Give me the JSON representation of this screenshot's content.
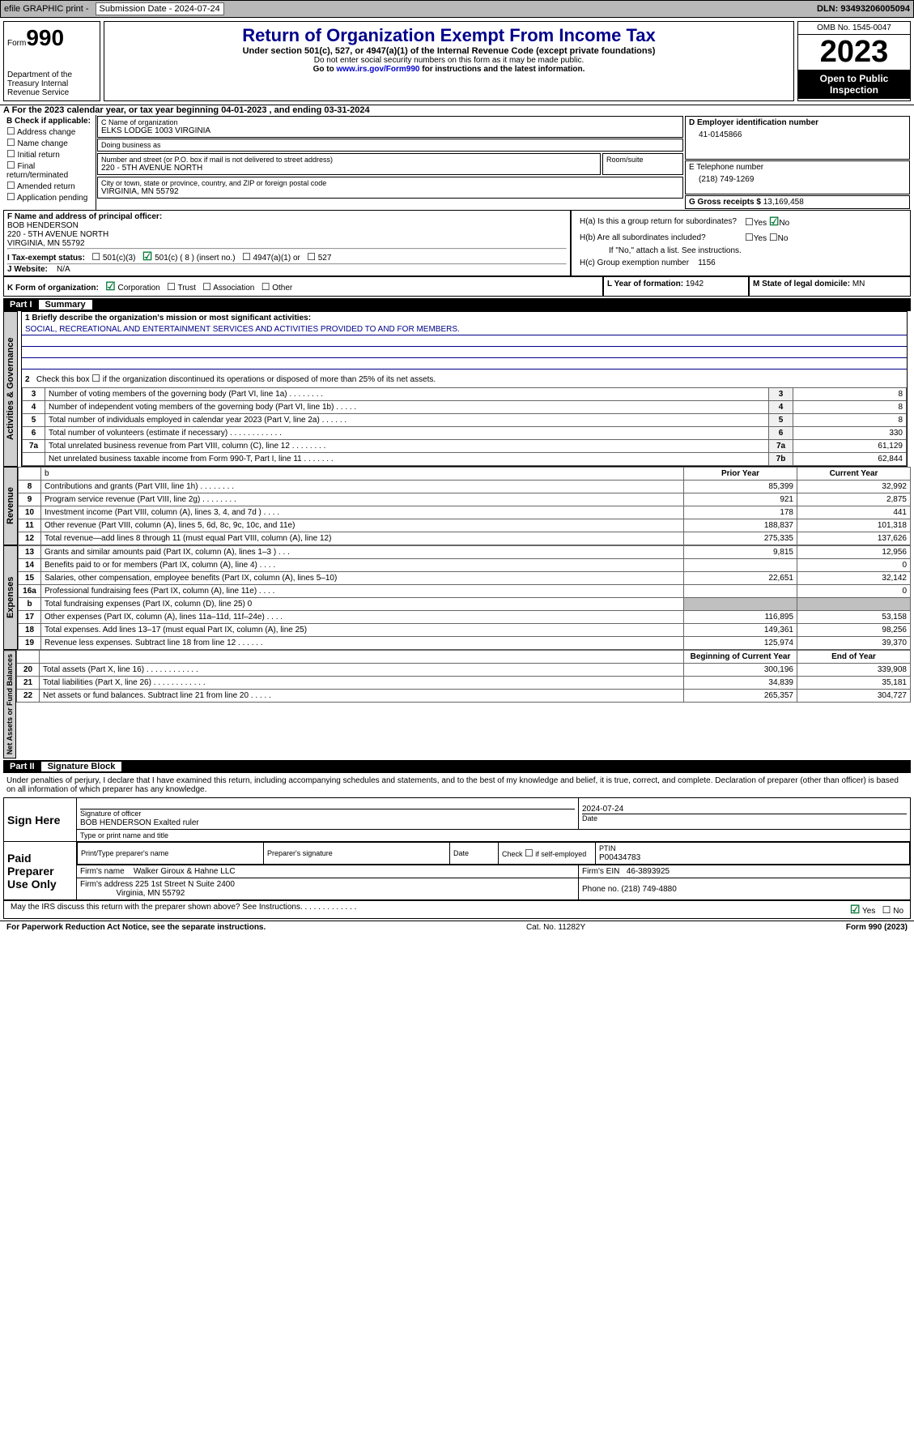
{
  "topbar": {
    "efile": "efile GRAPHIC print -",
    "submission": "Submission Date - 2024-07-24",
    "dln": "DLN: 93493206005094"
  },
  "header": {
    "form_prefix": "Form",
    "form_number": "990",
    "dept": "Department of the Treasury Internal Revenue Service",
    "title": "Return of Organization Exempt From Income Tax",
    "subtitle": "Under section 501(c), 527, or 4947(a)(1) of the Internal Revenue Code (except private foundations)",
    "note1": "Do not enter social security numbers on this form as it may be made public.",
    "note2_pre": "Go to ",
    "note2_link": "www.irs.gov/Form990",
    "note2_post": " for instructions and the latest information.",
    "omb": "OMB No. 1545-0047",
    "year": "2023",
    "inspect": "Open to Public Inspection"
  },
  "section_a": "A For the 2023 calendar year, or tax year beginning 04-01-2023    , and ending 03-31-2024",
  "section_b": {
    "title": "B Check if applicable:",
    "items": [
      "Address change",
      "Name change",
      "Initial return",
      "Final return/terminated",
      "Amended return",
      "Application pending"
    ]
  },
  "section_c": {
    "name_lbl": "C Name of organization",
    "name": "ELKS LODGE 1003 VIRGINIA",
    "dba_lbl": "Doing business as",
    "dba": "",
    "addr_lbl": "Number and street (or P.O. box if mail is not delivered to street address)",
    "addr": "220 - 5TH AVENUE NORTH",
    "room_lbl": "Room/suite",
    "city_lbl": "City or town, state or province, country, and ZIP or foreign postal code",
    "city": "VIRGINIA, MN  55792"
  },
  "section_d": {
    "lbl": "D Employer identification number",
    "val": "41-0145866"
  },
  "section_e": {
    "lbl": "E Telephone number",
    "val": "(218) 749-1269"
  },
  "section_g": {
    "lbl": "G Gross receipts $",
    "val": "13,169,458"
  },
  "section_f": {
    "lbl": "F  Name and address of principal officer:",
    "name": "BOB HENDERSON",
    "addr1": "220 - 5TH AVENUE NORTH",
    "addr2": "VIRGINIA, MN  55792"
  },
  "section_h": {
    "ha": "H(a)  Is this a group return for subordinates?",
    "hb": "H(b)  Are all subordinates included?",
    "hb_note": "If \"No,\" attach a list. See instructions.",
    "hc": "H(c)  Group exemption number",
    "hc_val": "1156"
  },
  "section_i": {
    "lbl": "I    Tax-exempt status:",
    "c3": "501(c)(3)",
    "c": "501(c) ( 8 ) (insert no.)",
    "a4947": "4947(a)(1) or",
    "s527": "527"
  },
  "section_j": {
    "lbl": "J    Website:",
    "val": "N/A"
  },
  "section_k": {
    "lbl": "K Form of organization:",
    "corp": "Corporation",
    "trust": "Trust",
    "assoc": "Association",
    "other": "Other"
  },
  "section_l": {
    "lbl": "L Year of formation:",
    "val": "1942"
  },
  "section_m": {
    "lbl": "M State of legal domicile:",
    "val": "MN"
  },
  "part1": {
    "num": "Part I",
    "title": "Summary",
    "mission_lbl": "1   Briefly describe the organization's mission or most significant activities:",
    "mission": "SOCIAL, RECREATIONAL AND ENTERTAINMENT SERVICES AND ACTIVITIES PROVIDED TO AND FOR MEMBERS.",
    "line2": "Check this box       if the organization discontinued its operations or disposed of more than 25% of its net assets.",
    "tabs": {
      "ag": "Activities & Governance",
      "rev": "Revenue",
      "exp": "Expenses",
      "net": "Net Assets or Fund Balances"
    },
    "rows_single": [
      {
        "n": "3",
        "t": "Number of voting members of the governing body (Part VI, line 1a)   .    .    .    .    .    .    .    .",
        "c": "3",
        "v": "8"
      },
      {
        "n": "4",
        "t": "Number of independent voting members of the governing body (Part VI, line 1b)   .    .    .    .    .",
        "c": "4",
        "v": "8"
      },
      {
        "n": "5",
        "t": "Total number of individuals employed in calendar year 2023 (Part V, line 2a)   .    .    .    .    .    .",
        "c": "5",
        "v": "8"
      },
      {
        "n": "6",
        "t": "Total number of volunteers (estimate if necessary)   .    .    .    .    .    .    .    .    .    .    .    .",
        "c": "6",
        "v": "330"
      },
      {
        "n": "7a",
        "t": "Total unrelated business revenue from Part VIII, column (C), line 12   .    .    .    .    .    .    .    .",
        "c": "7a",
        "v": "61,129"
      },
      {
        "n": "",
        "t": "Net unrelated business taxable income from Form 990-T, Part I, line 11   .    .    .    .    .    .    .",
        "c": "7b",
        "v": "62,844"
      }
    ],
    "prior_hdr": "Prior Year",
    "curr_hdr": "Current Year",
    "boy_hdr": "Beginning of Current Year",
    "eoy_hdr": "End of Year",
    "rows_revenue": [
      {
        "n": "8",
        "t": "Contributions and grants (Part VIII, line 1h)   .    .    .    .    .    .    .    .",
        "p": "85,399",
        "c": "32,992"
      },
      {
        "n": "9",
        "t": "Program service revenue (Part VIII, line 2g)   .    .    .    .    .    .    .    .",
        "p": "921",
        "c": "2,875"
      },
      {
        "n": "10",
        "t": "Investment income (Part VIII, column (A), lines 3, 4, and 7d )   .    .    .    .",
        "p": "178",
        "c": "441"
      },
      {
        "n": "11",
        "t": "Other revenue (Part VIII, column (A), lines 5, 6d, 8c, 9c, 10c, and 11e)",
        "p": "188,837",
        "c": "101,318"
      },
      {
        "n": "12",
        "t": "Total revenue—add lines 8 through 11 (must equal Part VIII, column (A), line 12)",
        "p": "275,335",
        "c": "137,626"
      }
    ],
    "rows_expenses": [
      {
        "n": "13",
        "t": "Grants and similar amounts paid (Part IX, column (A), lines 1–3 )   .    .    .",
        "p": "9,815",
        "c": "12,956"
      },
      {
        "n": "14",
        "t": "Benefits paid to or for members (Part IX, column (A), line 4)   .    .    .    .",
        "p": "",
        "c": "0"
      },
      {
        "n": "15",
        "t": "Salaries, other compensation, employee benefits (Part IX, column (A), lines 5–10)",
        "p": "22,651",
        "c": "32,142"
      },
      {
        "n": "16a",
        "t": "Professional fundraising fees (Part IX, column (A), line 11e)   .    .    .    .",
        "p": "",
        "c": "0"
      },
      {
        "n": "b",
        "t": "Total fundraising expenses (Part IX, column (D), line 25) 0",
        "p": "grey",
        "c": "grey"
      },
      {
        "n": "17",
        "t": "Other expenses (Part IX, column (A), lines 11a–11d, 11f–24e)   .    .    .    .",
        "p": "116,895",
        "c": "53,158"
      },
      {
        "n": "18",
        "t": "Total expenses. Add lines 13–17 (must equal Part IX, column (A), line 25)",
        "p": "149,361",
        "c": "98,256"
      },
      {
        "n": "19",
        "t": "Revenue less expenses. Subtract line 18 from line 12   .    .    .    .    .    .",
        "p": "125,974",
        "c": "39,370"
      }
    ],
    "rows_net": [
      {
        "n": "20",
        "t": "Total assets (Part X, line 16)   .    .    .    .    .    .    .    .    .    .    .    .",
        "p": "300,196",
        "c": "339,908"
      },
      {
        "n": "21",
        "t": "Total liabilities (Part X, line 26)   .    .    .    .    .    .    .    .    .    .    .    .",
        "p": "34,839",
        "c": "35,181"
      },
      {
        "n": "22",
        "t": "Net assets or fund balances. Subtract line 21 from line 20   .    .    .    .    .",
        "p": "265,357",
        "c": "304,727"
      }
    ]
  },
  "part2": {
    "num": "Part II",
    "title": "Signature Block",
    "decl": "Under penalties of perjury, I declare that I have examined this return, including accompanying schedules and statements, and to the best of my knowledge and belief, it is true, correct, and complete. Declaration of preparer (other than officer) is based on all information of which preparer has any knowledge.",
    "sign_here": "Sign Here",
    "sig_off": "Signature of officer",
    "officer": "BOB HENDERSON  Exalted ruler",
    "type_name": "Type or print name and title",
    "sig_date": "2024-07-24",
    "date_lbl": "Date",
    "paid": "Paid Preparer Use Only",
    "prep_name_lbl": "Print/Type preparer's name",
    "prep_sig_lbl": "Preparer's signature",
    "prep_date_lbl": "Date",
    "self_emp": "Check        if self-employed",
    "ptin_lbl": "PTIN",
    "ptin": "P00434783",
    "firm_name_lbl": "Firm's name",
    "firm_name": "Walker Giroux & Hahne LLC",
    "firm_ein_lbl": "Firm's EIN",
    "firm_ein": "46-3893925",
    "firm_addr_lbl": "Firm's address",
    "firm_addr1": "225 1st Street N Suite 2400",
    "firm_addr2": "Virginia, MN  55792",
    "phone_lbl": "Phone no.",
    "phone": "(218) 749-4880",
    "discuss": "May the IRS discuss this return with the preparer shown above? See Instructions.    .    .    .    .    .    .    .    .    .    .    .    ."
  },
  "footer": {
    "pra": "For Paperwork Reduction Act Notice, see the separate instructions.",
    "cat": "Cat. No. 11282Y",
    "form": "Form 990 (2023)"
  }
}
